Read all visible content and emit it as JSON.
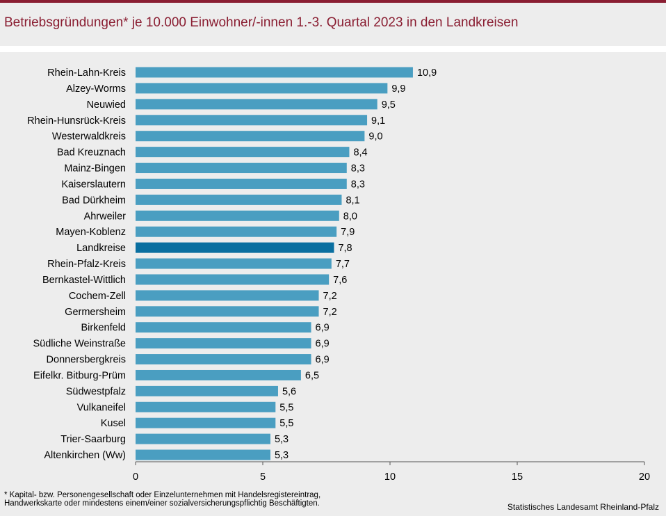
{
  "header": {
    "title": "Betriebsgründungen* je 10.000 Einwohner/-innen 1.-3. Quartal 2023 in den Landkreisen"
  },
  "footer": {
    "footnote_line1": "* Kapital- bzw. Personengesellschaft oder Einzelunternehmen mit Handelsregistereintrag,",
    "footnote_line2": "Handwerkskarte oder mindestens einem/einer sozialversicherungspflichtig Beschäftigten.",
    "source": "Statistisches Landesamt Rheinland-Pfalz"
  },
  "colors": {
    "bar": "#4a9ec1",
    "highlight": "#0a6fa0",
    "accent": "#8a1e32"
  },
  "chart_data": {
    "type": "bar",
    "orientation": "horizontal",
    "title": "Betriebsgründungen* je 10.000 Einwohner/-innen 1.-3. Quartal 2023 in den Landkreisen",
    "categories": [
      "Rhein-Lahn-Kreis",
      "Alzey-Worms",
      "Neuwied",
      "Rhein-Hunsrück-Kreis",
      "Westerwaldkreis",
      "Bad Kreuznach",
      "Mainz-Bingen",
      "Kaiserslautern",
      "Bad Dürkheim",
      "Ahrweiler",
      "Mayen-Koblenz",
      "Landkreise",
      "Rhein-Pfalz-Kreis",
      "Bernkastel-Wittlich",
      "Cochem-Zell",
      "Germersheim",
      "Birkenfeld",
      "Südliche Weinstraße",
      "Donnersbergkreis",
      "Eifelkr. Bitburg-Prüm",
      "Südwestpfalz",
      "Vulkaneifel",
      "Kusel",
      "Trier-Saarburg",
      "Altenkirchen (Ww)"
    ],
    "values": [
      10.9,
      9.9,
      9.5,
      9.1,
      9.0,
      8.4,
      8.3,
      8.3,
      8.1,
      8.0,
      7.9,
      7.8,
      7.7,
      7.6,
      7.2,
      7.2,
      6.9,
      6.9,
      6.9,
      6.5,
      5.6,
      5.5,
      5.5,
      5.3,
      5.3
    ],
    "value_labels": [
      "10,9",
      "9,9",
      "9,5",
      "9,1",
      "9,0",
      "8,4",
      "8,3",
      "8,3",
      "8,1",
      "8,0",
      "7,9",
      "7,8",
      "7,7",
      "7,6",
      "7,2",
      "7,2",
      "6,9",
      "6,9",
      "6,9",
      "6,5",
      "5,6",
      "5,5",
      "5,5",
      "5,3",
      "5,3"
    ],
    "highlight": "Landkreise",
    "xlim": [
      0,
      20
    ],
    "xticks": [
      0,
      5,
      10,
      15,
      20
    ],
    "xtick_labels": [
      "0",
      "5",
      "10",
      "15",
      "20"
    ],
    "xlabel": "",
    "ylabel": "",
    "grid": false,
    "legend": "none"
  }
}
